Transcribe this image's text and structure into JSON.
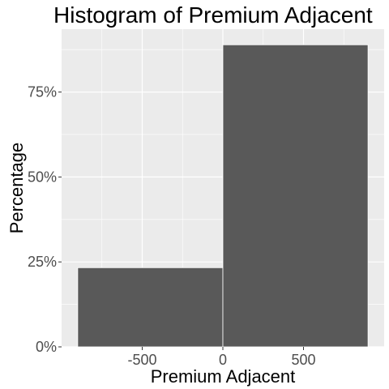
{
  "chart_data": {
    "type": "bar",
    "title": "Histogram of Premium Adjacent",
    "xlabel": "Premium Adjacent",
    "ylabel": "Percentage",
    "bins": [
      {
        "x_start": -900,
        "x_end": 0,
        "value": 0.233
      },
      {
        "x_start": 0,
        "x_end": 900,
        "value": 0.889
      }
    ],
    "xlim": [
      -1000,
      1000
    ],
    "ylim": [
      0,
      0.935
    ],
    "x_ticks": [
      {
        "value": -500,
        "label": "-500"
      },
      {
        "value": 0,
        "label": "0"
      },
      {
        "value": 500,
        "label": "500"
      }
    ],
    "y_ticks": [
      {
        "value": 0,
        "label": "0%"
      },
      {
        "value": 0.25,
        "label": "25%"
      },
      {
        "value": 0.5,
        "label": "50%"
      },
      {
        "value": 0.75,
        "label": "75%"
      }
    ],
    "grid": true,
    "colors": {
      "panel_background": "#ebebeb",
      "grid_major": "#ffffff",
      "bar_fill": "#595959",
      "bar_outline": "#ffffff"
    }
  }
}
